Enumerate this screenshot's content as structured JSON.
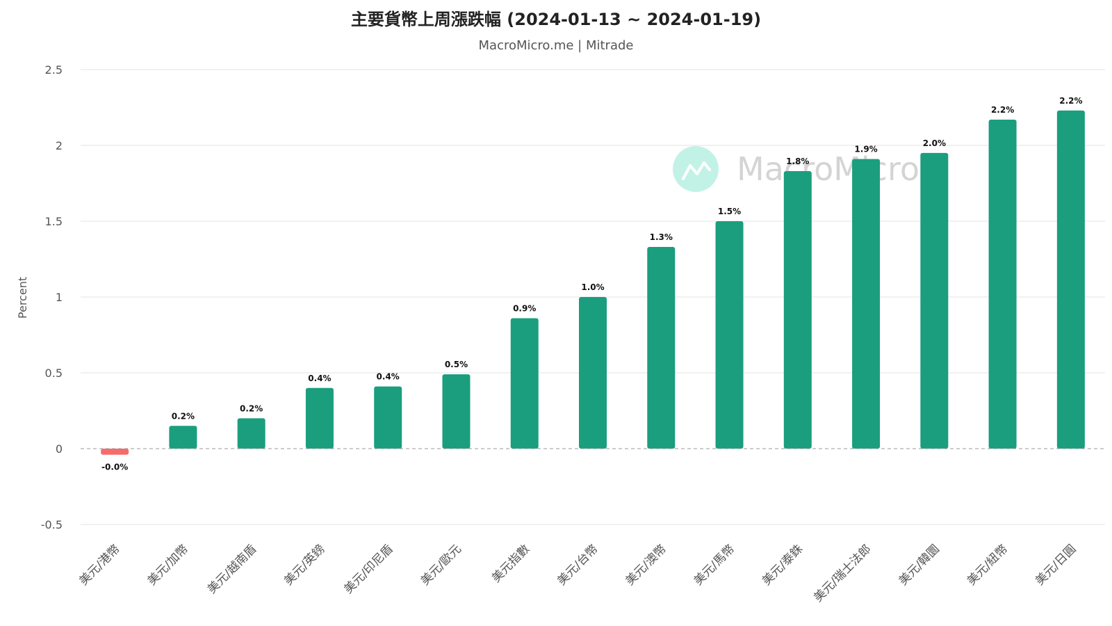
{
  "chart_data": {
    "type": "bar",
    "title": "主要貨幣上周漲跌幅 (2024-01-13 ~ 2024-01-19)",
    "subtitle": "MacroMicro.me | Mitrade",
    "watermark": "MacroMicro",
    "ylabel": "Percent",
    "ylim": [
      -0.5,
      2.5
    ],
    "yticks": [
      {
        "value": -0.5,
        "label": "-0.5"
      },
      {
        "value": 0,
        "label": "0"
      },
      {
        "value": 0.5,
        "label": "0.5"
      },
      {
        "value": 1,
        "label": "1"
      },
      {
        "value": 1.5,
        "label": "1.5"
      },
      {
        "value": 2,
        "label": "2"
      },
      {
        "value": 2.5,
        "label": "2.5"
      }
    ],
    "grid": true,
    "legend": "none",
    "categories": [
      "美元/港幣",
      "美元/加幣",
      "美元/越南盾",
      "美元/英鎊",
      "美元/印尼盾",
      "美元/歐元",
      "美元指數",
      "美元/台幣",
      "美元/澳幣",
      "美元/馬幣",
      "美元/泰銖",
      "美元/瑞士法郎",
      "美元/韓圜",
      "美元/紐幣",
      "美元/日圓"
    ],
    "values": [
      -0.04,
      0.15,
      0.2,
      0.4,
      0.41,
      0.49,
      0.86,
      1.0,
      1.33,
      1.5,
      1.83,
      1.91,
      1.95,
      2.17,
      2.23
    ],
    "data_labels": [
      "-0.0%",
      "0.2%",
      "0.2%",
      "0.4%",
      "0.4%",
      "0.5%",
      "0.9%",
      "1.0%",
      "1.3%",
      "1.5%",
      "1.8%",
      "1.9%",
      "2.0%",
      "2.2%",
      "2.2%"
    ],
    "colors": {
      "positive": "#1a9e7e",
      "negative": "#f76b6b",
      "grid": "#e3e3e3",
      "zero_line": "#999999",
      "watermark_logo": "#c2f2e6"
    }
  }
}
